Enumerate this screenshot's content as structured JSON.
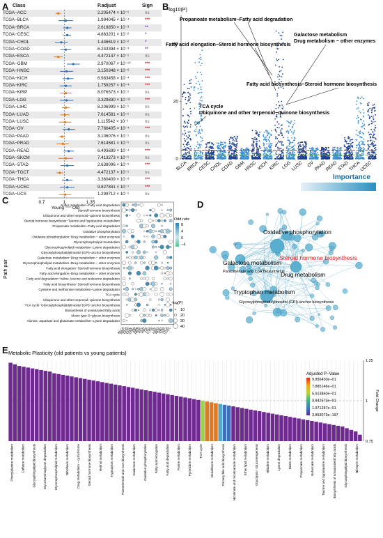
{
  "panels": {
    "a": "A",
    "b": "B",
    "c": "C",
    "d": "D",
    "e": "E"
  },
  "panel_a": {
    "header_class": "Class",
    "header_padj": "P.adjust",
    "header_sign": "Sign",
    "rows": [
      {
        "cls": "TCGA−ACC",
        "padj": "2.205474 × 10⁻¹",
        "sign": "ns",
        "sc": "#666"
      },
      {
        "cls": "TCGA−BLCA",
        "padj": "1.994045 × 10⁻⁴",
        "sign": "***",
        "sc": "#d9262c"
      },
      {
        "cls": "TCGA−BRCA",
        "padj": "2.618850 × 10⁻³",
        "sign": "**",
        "sc": "#8d3fc2"
      },
      {
        "cls": "TCGA−CESC",
        "padj": "4.863201 × 10⁻²",
        "sign": "*",
        "sc": "#8d3fc2"
      },
      {
        "cls": "TCGA−CHOL",
        "padj": "1.446619 × 10⁻²",
        "sign": "*",
        "sc": "#8d3fc2"
      },
      {
        "cls": "TCGA−COAD",
        "padj": "6.243394 × 10⁻³",
        "sign": "**",
        "sc": "#8d3fc2"
      },
      {
        "cls": "TCGA−ESCA",
        "padj": "4.472137 × 10⁻¹",
        "sign": "ns",
        "sc": "#666"
      },
      {
        "cls": "TCGA−GBM",
        "padj": "2.970067 × 10⁻¹⁰",
        "sign": "***",
        "sc": "#d9262c"
      },
      {
        "cls": "TCGA−HNSC",
        "padj": "3.150348 × 10⁻⁶",
        "sign": "***",
        "sc": "#d9262c"
      },
      {
        "cls": "TCGA−KICH",
        "padj": "6.983458 × 10⁻⁴",
        "sign": "***",
        "sc": "#d9262c"
      },
      {
        "cls": "TCGA−KIRC",
        "padj": "1.759257 × 10⁻⁴",
        "sign": "***",
        "sc": "#d9262c"
      },
      {
        "cls": "TCGA−KIRP",
        "padj": "8.076573 × 10⁻¹",
        "sign": "ns",
        "sc": "#666"
      },
      {
        "cls": "TCGA−LGG",
        "padj": "3.329830 × 10⁻¹²",
        "sign": "***",
        "sc": "#d9262c"
      },
      {
        "cls": "TCGA−LIHC",
        "padj": "8.206999 × 10⁻¹",
        "sign": "ns",
        "sc": "#666"
      },
      {
        "cls": "TCGA−LUAD",
        "padj": "7.614581 × 10⁻¹",
        "sign": "ns",
        "sc": "#666"
      },
      {
        "cls": "TCGA−LUSC",
        "padj": "1.115542 × 10⁻¹",
        "sign": "ns",
        "sc": "#666"
      },
      {
        "cls": "TCGA−OV",
        "padj": "7.766405 × 10⁻⁴",
        "sign": "***",
        "sc": "#d9262c"
      },
      {
        "cls": "TCGA−PAAD",
        "padj": "3.106076 × 10⁻¹",
        "sign": "ns",
        "sc": "#666"
      },
      {
        "cls": "TCGA−PRAD",
        "padj": "7.614581 × 10⁻¹",
        "sign": "ns",
        "sc": "#666"
      },
      {
        "cls": "TCGA−READ",
        "padj": "6.493699 × 10⁻⁴",
        "sign": "***",
        "sc": "#d9262c"
      },
      {
        "cls": "TCGA−SKCM",
        "padj": "7.413273 × 10⁻¹",
        "sign": "ns",
        "sc": "#666"
      },
      {
        "cls": "TCGA−STAD",
        "padj": "2.638096 × 10⁻⁵",
        "sign": "***",
        "sc": "#d9262c"
      },
      {
        "cls": "TCGA−TGCT",
        "padj": "4.472137 × 10⁻¹",
        "sign": "ns",
        "sc": "#666"
      },
      {
        "cls": "TCGA−THCA",
        "padj": "3.360409 × 10⁻⁸",
        "sign": "***",
        "sc": "#d9262c"
      },
      {
        "cls": "TCGA−UCEC",
        "padj": "9.827831 × 10⁻⁷",
        "sign": "***",
        "sc": "#d9262c"
      },
      {
        "cls": "TCGA−UCS",
        "padj": "1.299712 × 10⁻¹",
        "sign": "ns",
        "sc": "#666"
      }
    ],
    "axis_ticks": [
      "0.7",
      "1",
      "1.35"
    ],
    "axis_label_young": "Young",
    "axis_label_old": "Old",
    "effects": [
      0.92,
      1.02,
      1.04,
      1.04,
      0.96,
      1.02,
      0.92,
      1.12,
      1.03,
      1.05,
      1.02,
      1.02,
      1.03,
      1.02,
      1.01,
      1.01,
      1.06,
      0.97,
      0.98,
      1.06,
      1.02,
      1.04,
      0.94,
      1.04,
      1.04,
      1.01
    ]
  },
  "panel_b": {
    "ylabel": "-log10(P)",
    "yticks": [
      "0",
      "20",
      "40"
    ],
    "categories": [
      "BLCA",
      "BRCA",
      "CESC",
      "CHOL",
      "COAD",
      "GBM",
      "HNSC",
      "KICH",
      "KIRC",
      "LGG",
      "LUSC",
      "OV",
      "PAAD",
      "READ",
      "STAD",
      "THCA",
      "UCEC"
    ],
    "annotations": [
      "Propanoate metabolism−Fatty acid degradation",
      "Galactose metabolism",
      "Drug metabolism − other enzymes",
      "Fatty acid elongation−Steroid hormone biosynthesis",
      "Fatty acid biosynthesis−Steroid hormone biosynthesis",
      "TCA cycle",
      "Ubiquinone and other terpenoid−quinone biosynthesis"
    ]
  },
  "panel_c": {
    "ylabel": "Path pair",
    "pairs": [
      "Sulfur metabolism−Fatty acid degradation",
      "Steroid hormone biosynthesis",
      "Ubiquinone and other terpenoid−quinone biosynthesis",
      "Steroid hormone biosynthesis−Taurine and hypotaurine metabolism",
      "Propanoate metabolism−Fatty acid degradation",
      "Oxidative phosphorylation",
      "Oxidative phosphorylation−Drug metabolism − other enzymes",
      "Glycerophospholipid metabolism",
      "Glycerophospholipid metabolism−Lysine degradation",
      "Glycosylphosphatidylinositol (GPI)−anchor biosynthesis",
      "Galactose metabolism−Drug metabolism − other enzymes",
      "Glycerophospholipid metabolism−Drug metabolism − other enzymes",
      "Fatty acid elongation−Steroid hormone biosynthesis",
      "Fatty acid elongation−Drug metabolism − other enzymes",
      "Fatty acid degradation−Valine, leucine and isoleucine degradation",
      "Fatty acid biosynthesis−Steroid hormone biosynthesis",
      "Cysteine and methionine metabolism−Lysine degradation",
      "TCA cycle",
      "Ubiquinone and other terpenoid−quinone biosynthesis",
      "TCA cycle−Glycosylphosphatidylinositol (GPI)−anchor biosynthesis",
      "Biosynthesis of unsaturated fatty acids",
      "Mucin type O−glycan biosynthesis",
      "Alanine, aspartate and glutamate metabolism−Lysine degradation"
    ],
    "columns": [
      "BLCA",
      "BRCA",
      "CESC",
      "CHOL",
      "COAD",
      "GBM",
      "HNSC",
      "KICH",
      "KIRC",
      "LGG",
      "LUSC",
      "OV",
      "PAAD",
      "READ",
      "STAD",
      "THCA",
      "UCEC"
    ],
    "legend_odd_title": "Odd ratio",
    "legend_odd_ticks": [
      "8",
      "4",
      "0",
      "−4"
    ],
    "legend_p_title": "-log(P)",
    "legend_p_ticks": [
      "10",
      "20",
      "30",
      "40"
    ]
  },
  "panel_d": {
    "importance_label": "Importance",
    "labels": [
      "Oxidative phosphorylation",
      "Steroid hormone biosynthesis",
      "Galactose metabolism",
      "Pantothenate and CoA biosynthesis",
      "Drug metabolism",
      "Tryptophan metabolism",
      "Glycosylphosphatidylinositol (GPI)-anchor biosynthesis"
    ],
    "highlight_color": "#e0201b"
  },
  "panel_e": {
    "title": "Metabolic Plasticity (old patients vs young patients)",
    "legend_title": "Adjusted P−Value",
    "legend_ticks": [
      "9.856430e−01",
      "7.885146e−01",
      "5.913860e−01",
      "3.942573e−01",
      "1.971287e−01",
      "3.853073e−197"
    ],
    "ylabel": "Fold Change",
    "yticks": [
      "1.25",
      "1",
      "0.75"
    ],
    "fold_changes": [
      1.235,
      1.225,
      1.215,
      1.21,
      1.205,
      1.2,
      1.195,
      1.19,
      1.185,
      1.18,
      1.17,
      1.165,
      1.16,
      1.155,
      1.15,
      1.145,
      1.14,
      1.135,
      1.13,
      1.125,
      1.12,
      1.115,
      1.11,
      1.105,
      1.1,
      1.095,
      1.09,
      1.085,
      1.08,
      1.075,
      1.07,
      1.065,
      1.06,
      1.055,
      1.05,
      1.045,
      1.04,
      1.035,
      1.03,
      1.025,
      1.02,
      1.015,
      1.01,
      1.005,
      1.0,
      0.995,
      0.99,
      0.985,
      0.98,
      0.975,
      0.97,
      0.965,
      0.96,
      0.955,
      0.95,
      0.945,
      0.94,
      0.935,
      0.93,
      0.925,
      0.92,
      0.915,
      0.91,
      0.905,
      0.9,
      0.895,
      0.89,
      0.885,
      0.88,
      0.875,
      0.87,
      0.865,
      0.86,
      0.855,
      0.85,
      0.845,
      0.84,
      0.83,
      0.82,
      0.81,
      0.79
    ],
    "bar_colors": {
      "default": "#6e2a8e",
      "mid1": "#9bd34a",
      "mid2": "#e2791f",
      "mid3": "#52a8c6",
      "mid4": "#3f6fb8"
    },
    "pathways_visible": [
      "Phenylalanine metabolism",
      "Caffeine metabolism",
      "Glycosphingolipid biosynthesis",
      "Glycosaminoglycan degradation",
      "Glycerophospholipid metabolism",
      "Riboflavin metabolism",
      "Drug metabolism − cytochrome",
      "Steroid hormone biosynthesis",
      "Retinol metabolism",
      "Tryptophan metabolism",
      "Pantothenate and CoA biosynthesis",
      "Galactose metabolism",
      "Oxidative phosphorylation",
      "Fatty acid elongation",
      "Fatty acid degradation",
      "Purine metabolism",
      "Pyrimidine metabolism",
      "TCA cycle",
      "Glutathione metabolism",
      "Primary bile acid biosynthesis",
      "Nicotinate and nicotinamide metabolism",
      "Ether lipid metabolism",
      "Glycolysis / Gluconeogenesis",
      "Histidine metabolism",
      "Lysine degradation",
      "Biotin metabolism",
      "Propanoate metabolism",
      "Butanoate metabolism",
      "Taurine and hypotaurine metabolism",
      "Biosynthesis of unsaturated fatty acids",
      "Glycosphingolipid biosynthesis",
      "Nitrogen metabolism"
    ]
  }
}
